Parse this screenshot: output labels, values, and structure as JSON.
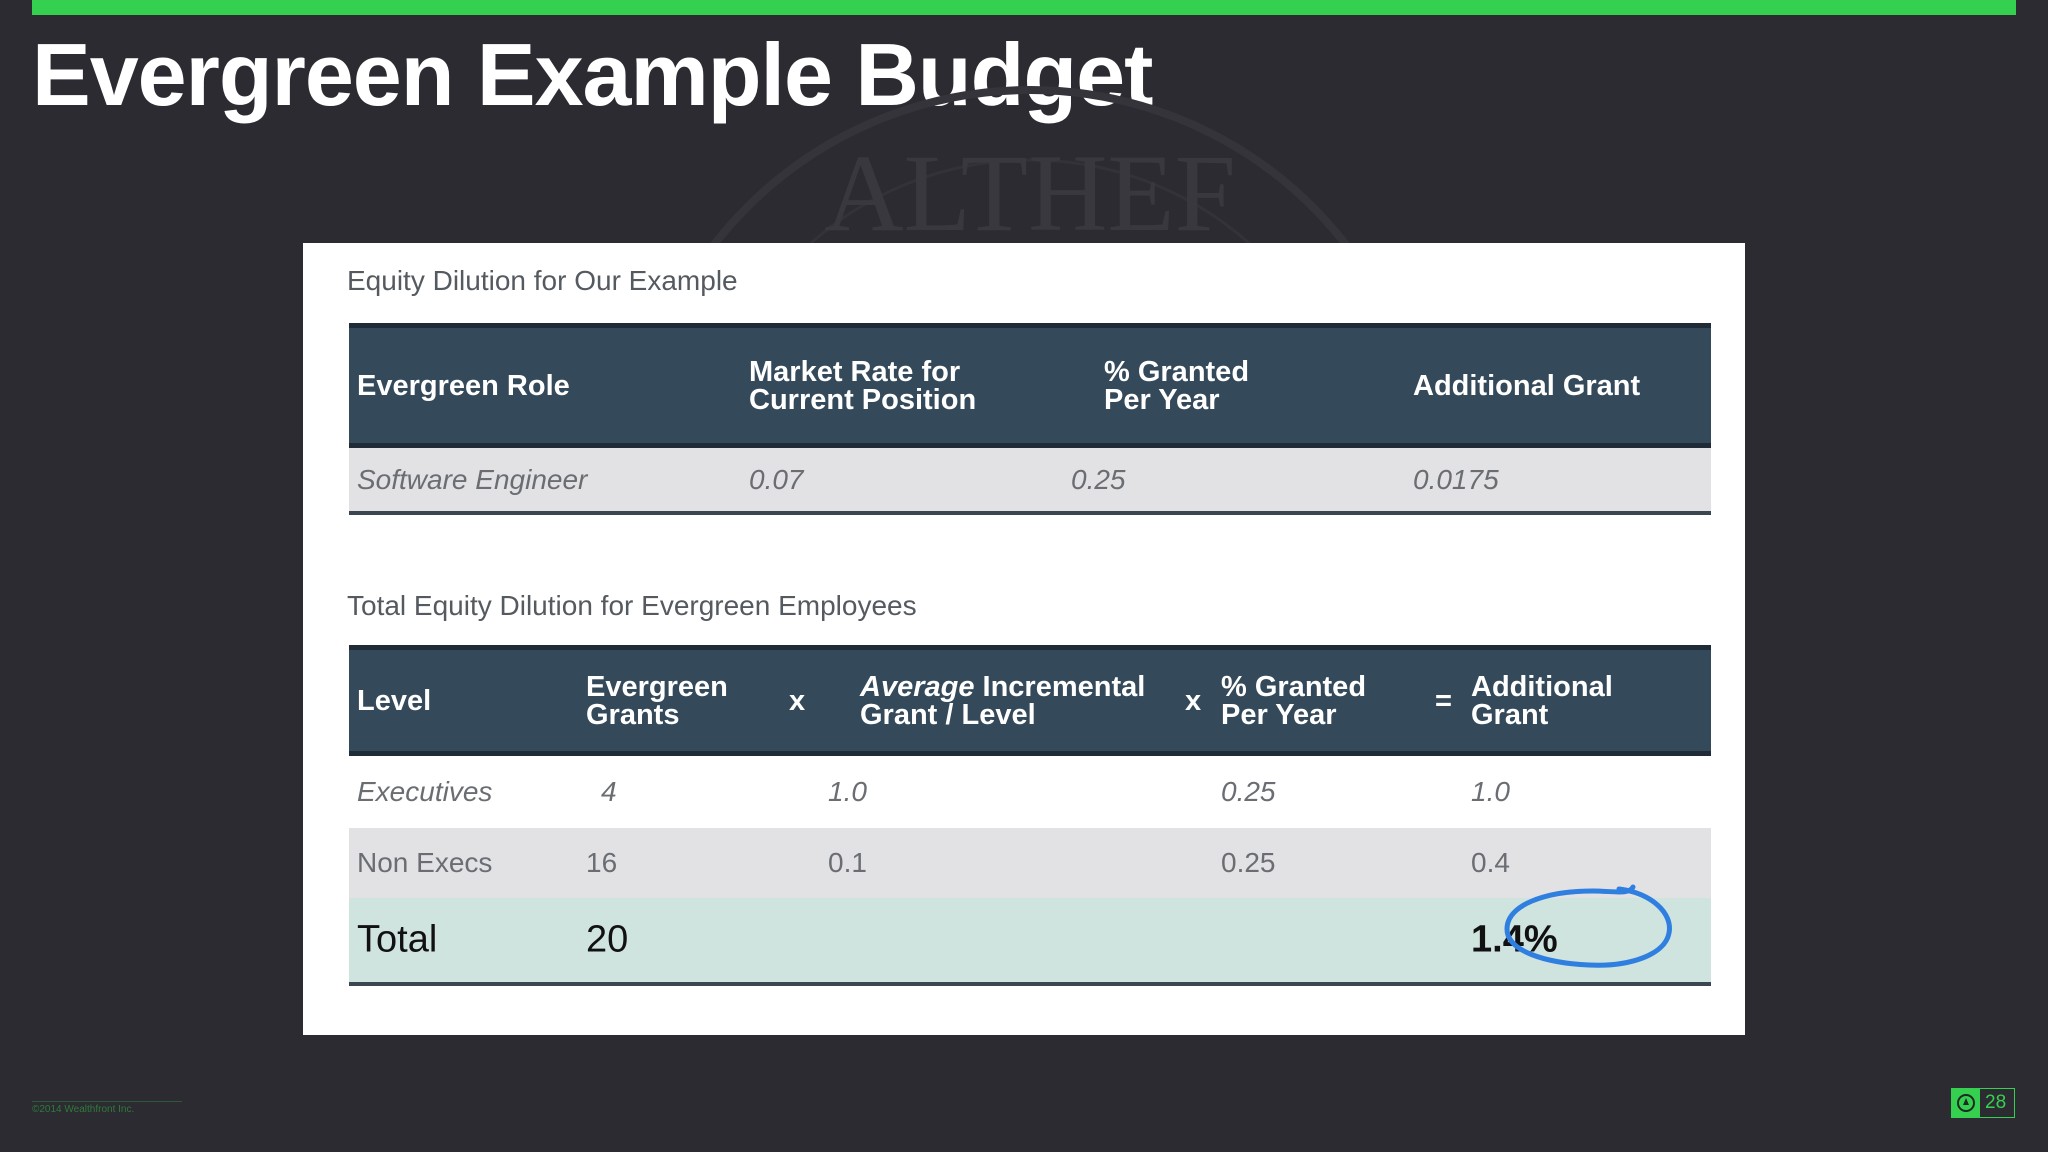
{
  "slide": {
    "title": "Evergreen Example Budget",
    "footer": "©2014 Wealthfront Inc.",
    "page_number": "28",
    "watermark_text": "ALTHEF"
  },
  "colors": {
    "accent_green": "#35d050",
    "background": "#2b2b31",
    "header_fill": "#34495a",
    "circle_blue": "#2f7fe0"
  },
  "table1": {
    "caption": "Equity Dilution for Our Example",
    "headers": [
      "Evergreen Role",
      "Market Rate for Current Position",
      "% Granted Per Year",
      "Additional Grant"
    ],
    "row": [
      "Software Engineer",
      "0.07",
      "0.25",
      "0.0175"
    ]
  },
  "table2": {
    "caption": "Total Equity Dilution for Evergreen Employees",
    "headers": {
      "level": "Level",
      "evergreen_grants": "Evergreen Grants",
      "op1": "x",
      "avg_italic": "Average",
      "avg_rest": "Incremental Grant / Level",
      "op2": "x",
      "pct": "% Granted Per Year",
      "op3": "=",
      "additional": "Additional Grant"
    },
    "rows": [
      {
        "level": "Executives",
        "grants": "4",
        "avg": "1.0",
        "pct": "0.25",
        "additional": "1.0"
      },
      {
        "level": "Non Execs",
        "grants": "16",
        "avg": "0.1",
        "pct": "0.25",
        "additional": "0.4"
      }
    ],
    "total": {
      "label": "Total",
      "grants": "20",
      "additional": "1.4%"
    }
  }
}
